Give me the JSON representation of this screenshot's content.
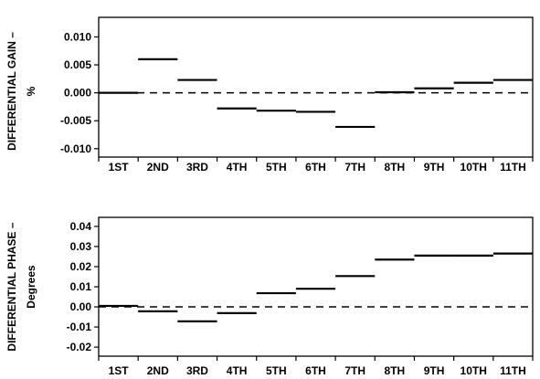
{
  "chart_data": [
    {
      "type": "line",
      "ylabel": "DIFFERENTIAL GAIN –\n%",
      "categories": [
        "1ST",
        "2ND",
        "3RD",
        "4TH",
        "5TH",
        "6TH",
        "7TH",
        "8TH",
        "9TH",
        "10TH",
        "11TH"
      ],
      "values": [
        0.0,
        0.006,
        0.0023,
        -0.0028,
        -0.0032,
        -0.0034,
        -0.0061,
        0.0001,
        0.0008,
        0.0018,
        0.0023
      ],
      "ylim": [
        -0.0115,
        0.0135
      ],
      "yticks": [
        0.01,
        0.005,
        0.0,
        -0.005,
        -0.01
      ],
      "ytick_labels": [
        "0.010",
        "0.005",
        "0.000",
        "-0.005",
        "-0.010"
      ],
      "reference_line": 0,
      "grid": false,
      "style": "step segments"
    },
    {
      "type": "line",
      "ylabel": "DIFFERENTIAL PHASE –\nDegrees",
      "categories": [
        "1ST",
        "2ND",
        "3RD",
        "4TH",
        "5TH",
        "6TH",
        "7TH",
        "8TH",
        "9TH",
        "10TH",
        "11TH"
      ],
      "values": [
        0.0005,
        -0.0022,
        -0.0072,
        -0.0031,
        0.0068,
        0.009,
        0.0153,
        0.0235,
        0.0255,
        0.0255,
        0.0265
      ],
      "ylim": [
        -0.0245,
        0.0445
      ],
      "yticks": [
        0.04,
        0.03,
        0.02,
        0.01,
        0.0,
        -0.01,
        -0.02
      ],
      "ytick_labels": [
        "0.04",
        "0.03",
        "0.02",
        "0.01",
        "0.00",
        "-0.01",
        "-0.02"
      ],
      "reference_line": 0,
      "grid": false,
      "style": "step segments"
    }
  ],
  "colors": {
    "line": "#000000",
    "background": "#ffffff"
  }
}
